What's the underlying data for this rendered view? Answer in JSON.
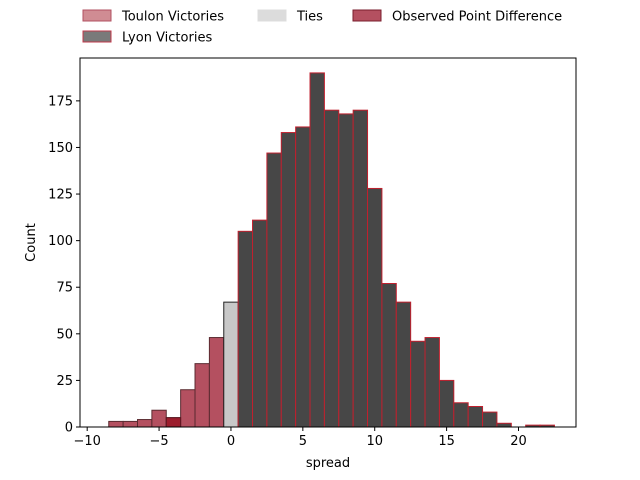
{
  "chart_data": {
    "type": "bar",
    "xlabel": "spread",
    "ylabel": "Count",
    "xlim": [
      -10.5,
      24
    ],
    "ylim": [
      0,
      198
    ],
    "xticks": [
      -10,
      -5,
      0,
      5,
      10,
      15,
      20
    ],
    "yticks": [
      0,
      25,
      50,
      75,
      100,
      125,
      150,
      175
    ],
    "bin_width": 1,
    "legend": {
      "placement": "top-center-outside",
      "entries": [
        {
          "label": "Toulon Victories",
          "color": "#d08c93",
          "edge": "#b25060"
        },
        {
          "label": "Ties",
          "color": "#dcdcdc",
          "edge": "#dcdcdc"
        },
        {
          "label": "Observed Point Difference",
          "color": "#b45060",
          "edge": "#7a1e2c"
        },
        {
          "label": "Lyon Victories",
          "color": "#7a7a7a",
          "edge": "#c0394b"
        }
      ]
    },
    "series": [
      {
        "name": "Toulon Victories",
        "color": "#b45060",
        "edge": "#5a2a30",
        "bins": [
          {
            "x0": -8.5,
            "count": 3
          },
          {
            "x0": -7.5,
            "count": 3
          },
          {
            "x0": -6.5,
            "count": 4
          },
          {
            "x0": -5.5,
            "count": 9
          },
          {
            "x0": -4.5,
            "count": 5
          },
          {
            "x0": -3.5,
            "count": 20
          },
          {
            "x0": -2.5,
            "count": 34
          },
          {
            "x0": -1.5,
            "count": 48
          }
        ]
      },
      {
        "name": "Ties",
        "color": "#c8c8c8",
        "edge": "#222222",
        "bins": [
          {
            "x0": -0.5,
            "count": 67
          }
        ]
      },
      {
        "name": "Lyon Victories",
        "color": "#474747",
        "edge": "#c0202e",
        "bins": [
          {
            "x0": 0.5,
            "count": 105
          },
          {
            "x0": 1.5,
            "count": 111
          },
          {
            "x0": 2.5,
            "count": 147
          },
          {
            "x0": 3.5,
            "count": 158
          },
          {
            "x0": 4.5,
            "count": 161
          },
          {
            "x0": 5.5,
            "count": 190
          },
          {
            "x0": 6.5,
            "count": 170
          },
          {
            "x0": 7.5,
            "count": 168
          },
          {
            "x0": 8.5,
            "count": 170
          },
          {
            "x0": 9.5,
            "count": 128
          },
          {
            "x0": 10.5,
            "count": 77
          },
          {
            "x0": 11.5,
            "count": 67
          },
          {
            "x0": 12.5,
            "count": 46
          },
          {
            "x0": 13.5,
            "count": 48
          },
          {
            "x0": 14.5,
            "count": 25
          },
          {
            "x0": 15.5,
            "count": 13
          },
          {
            "x0": 16.5,
            "count": 11
          },
          {
            "x0": 17.5,
            "count": 8
          },
          {
            "x0": 18.5,
            "count": 2
          },
          {
            "x0": 19.5,
            "count": 0
          },
          {
            "x0": 20.5,
            "count": 1
          },
          {
            "x0": 21.5,
            "count": 1
          }
        ]
      }
    ],
    "highlight": {
      "name": "Observed Point Difference",
      "x0": -4.5,
      "count": 5,
      "color": "#9c1d2d"
    }
  }
}
